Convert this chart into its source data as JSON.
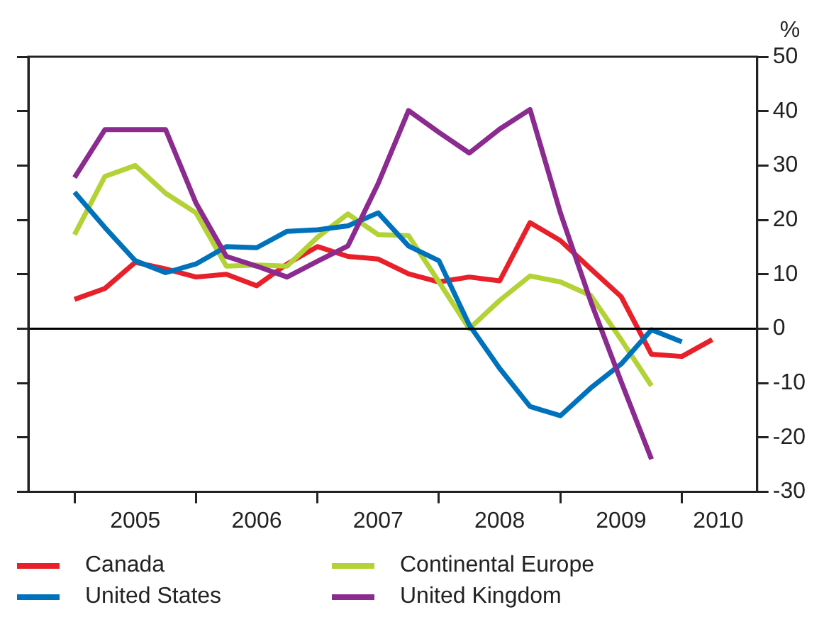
{
  "chart_data": {
    "type": "line",
    "ylabel": "%",
    "x": [
      2005,
      2005.25,
      2005.5,
      2005.75,
      2006,
      2006.25,
      2006.5,
      2006.75,
      2007,
      2007.25,
      2007.5,
      2007.75,
      2008,
      2008.25,
      2008.5,
      2008.75,
      2009,
      2009.25,
      2009.5,
      2009.75,
      2010,
      2010.25
    ],
    "xlim": [
      2004.62,
      2010.62
    ],
    "xticks": [
      {
        "value": 2005,
        "label": null
      },
      {
        "value": 2005.5,
        "label": "2005"
      },
      {
        "value": 2006,
        "label": null
      },
      {
        "value": 2006.5,
        "label": "2006"
      },
      {
        "value": 2007,
        "label": null
      },
      {
        "value": 2007.5,
        "label": "2007"
      },
      {
        "value": 2008,
        "label": null
      },
      {
        "value": 2008.5,
        "label": "2008"
      },
      {
        "value": 2009,
        "label": null
      },
      {
        "value": 2009.5,
        "label": "2009"
      },
      {
        "value": 2010,
        "label": null
      },
      {
        "value": 2010.3,
        "label": "2010"
      }
    ],
    "ylim": [
      -30,
      50
    ],
    "yticks": [
      -30,
      -20,
      -10,
      0,
      10,
      20,
      30,
      40,
      50
    ],
    "grid": false,
    "legend": "bottom",
    "marker": "none",
    "line_style": "solid",
    "ref_lines": [
      {
        "axis": "y",
        "value": 0,
        "color": "#000000"
      }
    ],
    "series": [
      {
        "name": "Canada",
        "color": "#e8202a",
        "values": [
          5.4,
          7.4,
          12.2,
          11.0,
          9.5,
          10.0,
          7.9,
          11.9,
          15.1,
          13.3,
          12.8,
          10.1,
          8.6,
          9.5,
          8.8,
          19.5,
          16.2,
          11.0,
          5.9,
          -4.7,
          -5.1,
          -2.0
        ]
      },
      {
        "name": "Continental Europe",
        "color": "#b2d235",
        "values": [
          17.3,
          28.0,
          30.0,
          24.9,
          21.3,
          11.5,
          11.7,
          11.5,
          16.8,
          21.1,
          17.3,
          17.1,
          8.6,
          0,
          5.2,
          9.7,
          8.6,
          6.1,
          -2,
          -10.5,
          null,
          null
        ]
      },
      {
        "name": "United States",
        "color": "#0072bc",
        "values": [
          25.1,
          18.6,
          12.5,
          10.3,
          11.9,
          15.1,
          14.9,
          17.9,
          18.2,
          18.9,
          21.3,
          15.2,
          12.5,
          0.7,
          -7.3,
          -14.3,
          -16.0,
          -10.9,
          -6.5,
          -0.2,
          -2.4,
          null
        ]
      },
      {
        "name": "United Kingdom",
        "color": "#8b2a8f",
        "values": [
          27.8,
          36.6,
          36.6,
          36.6,
          23.1,
          13.3,
          11.5,
          9.5,
          12.4,
          15.2,
          26.7,
          40.1,
          36.1,
          32.3,
          36.7,
          40.3,
          21.3,
          5,
          -9.7,
          -24,
          null,
          null
        ]
      }
    ]
  }
}
